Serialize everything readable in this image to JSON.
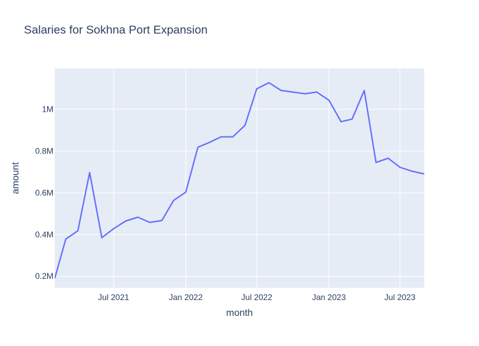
{
  "chart_data": {
    "type": "line",
    "title": "Salaries for Sokhna Port Expansion",
    "xlabel": "month",
    "ylabel": "amount",
    "x_ticks": [
      {
        "date": "2021-07-01",
        "label": "Jul 2021"
      },
      {
        "date": "2022-01-01",
        "label": "Jan 2022"
      },
      {
        "date": "2022-07-01",
        "label": "Jul 2022"
      },
      {
        "date": "2023-01-01",
        "label": "Jan 2023"
      },
      {
        "date": "2023-07-01",
        "label": "Jul 2023"
      }
    ],
    "y_ticks": [
      {
        "value": 200000,
        "label": "0.2M"
      },
      {
        "value": 400000,
        "label": "0.4M"
      },
      {
        "value": 600000,
        "label": "0.6M"
      },
      {
        "value": 800000,
        "label": "0.8M"
      },
      {
        "value": 1000000,
        "label": "1M"
      }
    ],
    "xlim": [
      "2021-02-01",
      "2023-09-01"
    ],
    "ylim": [
      145000,
      1195000
    ],
    "grid": true,
    "colors": {
      "line": "#636efa",
      "plot_bg": "#e5ecf6",
      "grid": "#ffffff",
      "text": "#2a3f5f"
    },
    "series": [
      {
        "x": [
          "2021-02-01",
          "2021-03-01",
          "2021-04-01",
          "2021-05-01",
          "2021-06-01",
          "2021-07-01",
          "2021-08-01",
          "2021-09-01",
          "2021-10-01",
          "2021-11-01",
          "2021-12-01",
          "2022-01-01",
          "2022-02-01",
          "2022-03-01",
          "2022-04-01",
          "2022-05-01",
          "2022-06-01",
          "2022-07-01",
          "2022-08-01",
          "2022-09-01",
          "2022-10-01",
          "2022-11-01",
          "2022-12-01",
          "2023-01-01",
          "2023-02-01",
          "2023-03-01",
          "2023-04-01",
          "2023-05-01",
          "2023-06-01",
          "2023-07-01",
          "2023-08-01",
          "2023-09-01"
        ],
        "values": [
          190000,
          378000,
          418000,
          697000,
          385000,
          428000,
          465000,
          483000,
          458000,
          467000,
          563000,
          603000,
          818000,
          840000,
          868000,
          868000,
          923000,
          1098000,
          1127000,
          1090000,
          1082000,
          1074000,
          1082000,
          1043000,
          940000,
          953000,
          1090000,
          745000,
          765000,
          722000,
          703000,
          690000
        ]
      }
    ]
  }
}
